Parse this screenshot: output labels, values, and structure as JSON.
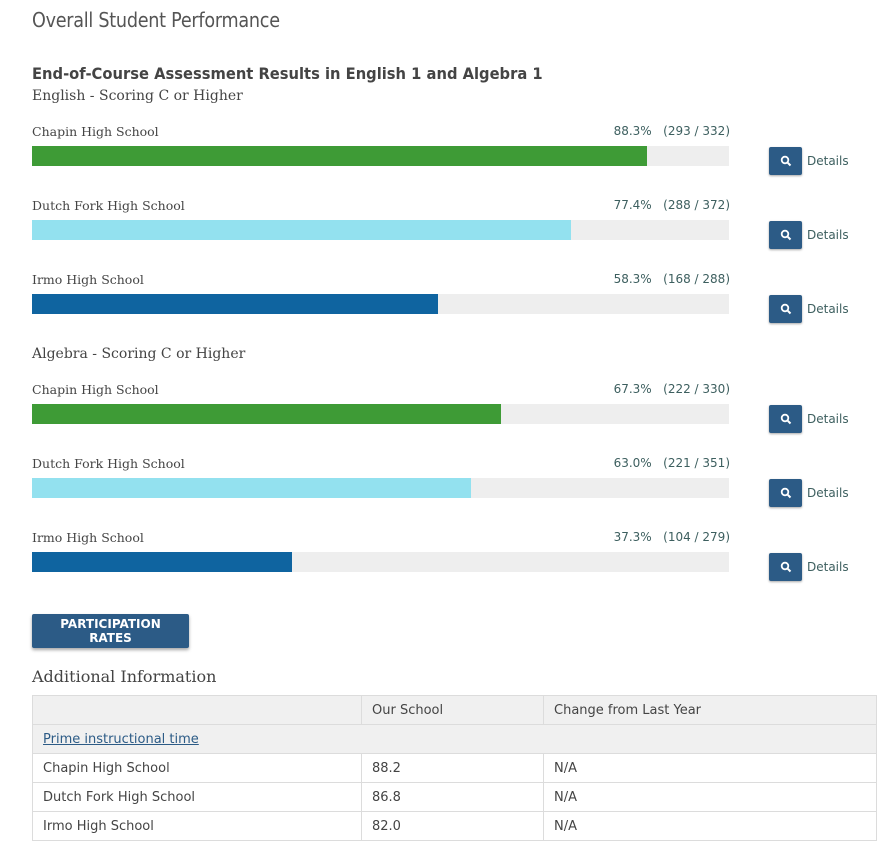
{
  "page_title": "Overall Student Performance",
  "section_title": "End-of-Course Assessment Results in English 1 and Algebra 1",
  "details_label": "Details",
  "colors": {
    "chapin": "#3e9b36",
    "dutch_fork": "#93e1ef",
    "irmo": "#0f64a0",
    "button": "#2c5b86"
  },
  "groups": [
    {
      "title": "English - Scoring C or Higher",
      "rows": [
        {
          "school": "Chapin High School",
          "percent": "88.3%",
          "counts": "(293 / 332)",
          "value": 88.3,
          "color_key": "chapin"
        },
        {
          "school": "Dutch Fork High School",
          "percent": "77.4%",
          "counts": "(288 / 372)",
          "value": 77.4,
          "color_key": "dutch_fork"
        },
        {
          "school": "Irmo High School",
          "percent": "58.3%",
          "counts": "(168 / 288)",
          "value": 58.3,
          "color_key": "irmo"
        }
      ]
    },
    {
      "title": "Algebra - Scoring C or Higher",
      "rows": [
        {
          "school": "Chapin High School",
          "percent": "67.3%",
          "counts": "(222 / 330)",
          "value": 67.3,
          "color_key": "chapin"
        },
        {
          "school": "Dutch Fork High School",
          "percent": "63.0%",
          "counts": "(221 / 351)",
          "value": 63.0,
          "color_key": "dutch_fork"
        },
        {
          "school": "Irmo High School",
          "percent": "37.3%",
          "counts": "(104 / 279)",
          "value": 37.3,
          "color_key": "irmo"
        }
      ]
    }
  ],
  "participation_button": "PARTICIPATION RATES",
  "additional_title": "Additional Information",
  "table": {
    "headers": [
      "",
      "Our School",
      "Change from Last Year"
    ],
    "category": "Prime instructional time",
    "rows": [
      [
        "Chapin High School",
        "88.2",
        "N/A"
      ],
      [
        "Dutch Fork High School",
        "86.8",
        "N/A"
      ],
      [
        "Irmo High School",
        "82.0",
        "N/A"
      ]
    ]
  }
}
